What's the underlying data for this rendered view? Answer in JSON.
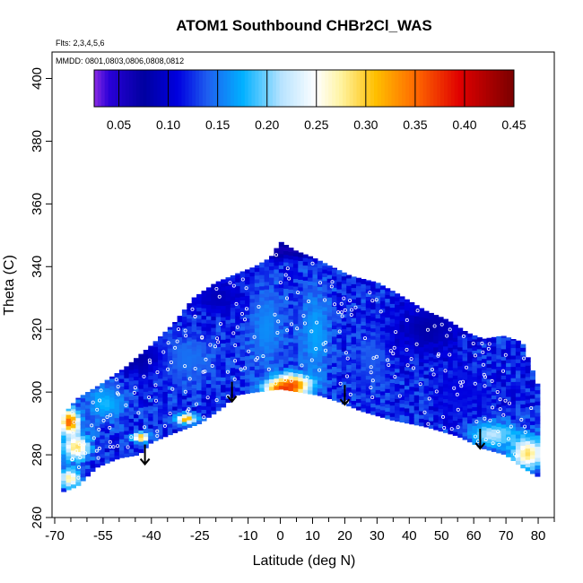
{
  "chart_data": {
    "type": "heatmap",
    "title": "ATOM1 Southbound CHBr2Cl_WAS",
    "xlabel": "Latitude (deg N)",
    "ylabel": "Theta (C)",
    "xlim": [
      -70,
      85
    ],
    "ylim": [
      260,
      405
    ],
    "x_ticks": [
      -70,
      -55,
      -40,
      -25,
      -10,
      0,
      10,
      20,
      30,
      40,
      50,
      60,
      70,
      80
    ],
    "x_minor_ticks": [
      -65,
      -60,
      -50,
      -45,
      -35,
      -30,
      -20,
      -15,
      -5,
      5,
      15,
      25,
      35,
      45,
      55,
      65,
      75,
      85
    ],
    "y_ticks": [
      260,
      280,
      300,
      320,
      340,
      360,
      380,
      400
    ],
    "annotations": {
      "flights": "Flts: 2,3,4,5,6",
      "dates": "MMDD: 0801,0803,0806,0808,0812"
    },
    "colorbar": {
      "min": 0.025,
      "max": 0.45,
      "ticks": [
        0.05,
        0.1,
        0.15,
        0.2,
        0.25,
        0.3,
        0.35,
        0.4,
        0.45
      ],
      "tick_labels": [
        "0.05",
        "0.10",
        "0.15",
        "0.20",
        "0.25",
        "0.30",
        "0.35",
        "0.40",
        "0.45"
      ],
      "color_stops": [
        {
          "v": 0.025,
          "c": "#8a2be2"
        },
        {
          "v": 0.04,
          "c": "#2a00d8"
        },
        {
          "v": 0.075,
          "c": "#0000a0"
        },
        {
          "v": 0.11,
          "c": "#0000e0"
        },
        {
          "v": 0.14,
          "c": "#1e5ff0"
        },
        {
          "v": 0.175,
          "c": "#00b0ff"
        },
        {
          "v": 0.215,
          "c": "#b9e4ff"
        },
        {
          "v": 0.25,
          "c": "#ffffff"
        },
        {
          "v": 0.275,
          "c": "#fff3a0"
        },
        {
          "v": 0.31,
          "c": "#ffbf00"
        },
        {
          "v": 0.35,
          "c": "#ff6a00"
        },
        {
          "v": 0.395,
          "c": "#e00000"
        },
        {
          "v": 0.45,
          "c": "#7a0000"
        }
      ]
    },
    "tropopause_arrows": [
      {
        "lat": -42,
        "theta": 277
      },
      {
        "lat": -15,
        "theta": 297
      },
      {
        "lat": 20,
        "theta": 296
      },
      {
        "lat": 62,
        "theta": 282
      }
    ],
    "domain_boundary": {
      "top": [
        [
          -68,
          292
        ],
        [
          -63,
          298
        ],
        [
          -55,
          303
        ],
        [
          -48,
          308
        ],
        [
          -40,
          315
        ],
        [
          -33,
          322
        ],
        [
          -27,
          330
        ],
        [
          -20,
          335
        ],
        [
          -13,
          338
        ],
        [
          -8,
          340
        ],
        [
          -3,
          343
        ],
        [
          0,
          348
        ],
        [
          5,
          345
        ],
        [
          10,
          343
        ],
        [
          16,
          340
        ],
        [
          22,
          337
        ],
        [
          30,
          335
        ],
        [
          37,
          331
        ],
        [
          45,
          326
        ],
        [
          52,
          323
        ],
        [
          58,
          319
        ],
        [
          63,
          317
        ],
        [
          69,
          318
        ],
        [
          75,
          316
        ],
        [
          80,
          302
        ]
      ],
      "bottom": [
        [
          -68,
          268
        ],
        [
          -63,
          270
        ],
        [
          -57,
          276
        ],
        [
          -50,
          279
        ],
        [
          -44,
          280
        ],
        [
          -40,
          284
        ],
        [
          -33,
          287
        ],
        [
          -25,
          290
        ],
        [
          -18,
          295
        ],
        [
          -14,
          299
        ],
        [
          -8,
          300
        ],
        [
          0,
          301
        ],
        [
          6,
          300
        ],
        [
          12,
          299
        ],
        [
          18,
          297
        ],
        [
          25,
          294
        ],
        [
          35,
          291
        ],
        [
          45,
          289
        ],
        [
          55,
          286
        ],
        [
          63,
          282
        ],
        [
          70,
          280
        ],
        [
          75,
          276
        ],
        [
          80,
          273
        ]
      ]
    },
    "features": [
      {
        "lat": 0,
        "theta": 300,
        "value": 0.43,
        "radius_lat": 5,
        "radius_theta": 3
      },
      {
        "lat": 3,
        "theta": 302,
        "value": 0.38,
        "radius_lat": 6,
        "radius_theta": 3
      },
      {
        "lat": -66,
        "theta": 290,
        "value": 0.36,
        "radius_lat": 3,
        "radius_theta": 4
      },
      {
        "lat": -30,
        "theta": 291,
        "value": 0.33,
        "radius_lat": 3,
        "radius_theta": 1.5
      },
      {
        "lat": -44,
        "theta": 285,
        "value": 0.32,
        "radius_lat": 2.5,
        "radius_theta": 1.5
      },
      {
        "lat": -64,
        "theta": 282,
        "value": 0.29,
        "radius_lat": 4,
        "radius_theta": 4
      },
      {
        "lat": -66,
        "theta": 272,
        "value": 0.28,
        "radius_lat": 3,
        "radius_theta": 3
      },
      {
        "lat": 76,
        "theta": 280,
        "value": 0.29,
        "radius_lat": 5,
        "radius_theta": 5
      },
      {
        "lat": 65,
        "theta": 286,
        "value": 0.22,
        "radius_lat": 7,
        "radius_theta": 4
      },
      {
        "lat": 10,
        "theta": 318,
        "value": 0.17,
        "radius_lat": 5,
        "radius_theta": 15
      },
      {
        "lat": -5,
        "theta": 320,
        "value": 0.16,
        "radius_lat": 6,
        "radius_theta": 14
      },
      {
        "lat": -30,
        "theta": 310,
        "value": 0.15,
        "radius_lat": 10,
        "radius_theta": 8
      },
      {
        "lat": -55,
        "theta": 296,
        "value": 0.18,
        "radius_lat": 6,
        "radius_theta": 6
      },
      {
        "lat": 28,
        "theta": 310,
        "value": 0.14,
        "radius_lat": 5,
        "radius_theta": 10
      },
      {
        "lat": 55,
        "theta": 300,
        "value": 0.11,
        "radius_lat": 8,
        "radius_theta": 8
      },
      {
        "lat": 45,
        "theta": 320,
        "value": 0.08,
        "radius_lat": 10,
        "radius_theta": 8
      },
      {
        "lat": -45,
        "theta": 310,
        "value": 0.08,
        "radius_lat": 8,
        "radius_theta": 5
      },
      {
        "lat": 0,
        "theta": 345,
        "value": 0.06,
        "radius_lat": 20,
        "radius_theta": 3
      },
      {
        "lat": -20,
        "theta": 330,
        "value": 0.09,
        "radius_lat": 8,
        "radius_theta": 5
      }
    ],
    "background_value": 0.12
  }
}
